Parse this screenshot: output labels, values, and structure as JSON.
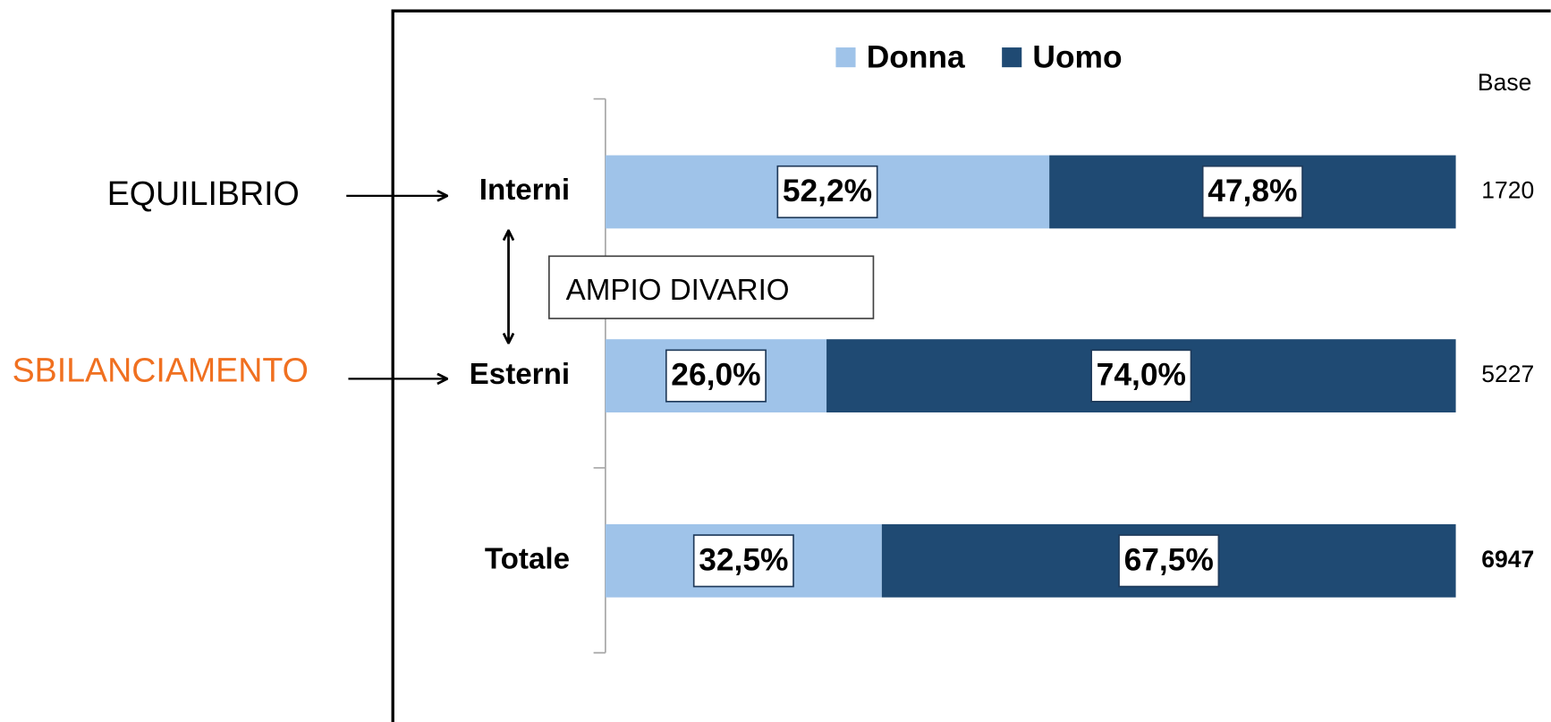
{
  "chart_data": {
    "type": "stacked-bar-horizontal",
    "categories": [
      "Interni",
      "Esterni",
      "Totale"
    ],
    "series": [
      {
        "name": "Donna",
        "color": "#9fc3e9",
        "values": [
          52.2,
          26.0,
          32.5
        ],
        "value_labels": [
          "52,2%",
          "26,0%",
          "32,5%"
        ]
      },
      {
        "name": "Uomo",
        "color": "#1f4a73",
        "values": [
          47.8,
          74.0,
          67.5
        ],
        "value_labels": [
          "47,8%",
          "74,0%",
          "67,5%"
        ]
      }
    ],
    "xlim": [
      0,
      100
    ],
    "base_label": "Base",
    "base": [
      1720,
      5227,
      6947
    ],
    "annotations": {
      "equilibrio": "EQUILIBRIO",
      "sbilanciamento": "SBILANCIAMENTO",
      "divario": "AMPIO DIVARIO"
    }
  }
}
